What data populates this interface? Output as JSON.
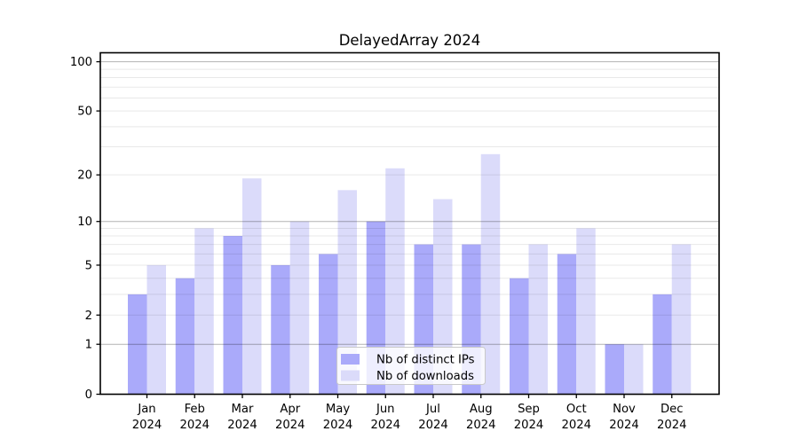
{
  "chart_data": {
    "type": "bar",
    "title": "DelayedArray 2024",
    "categories": [
      "Jan",
      "Feb",
      "Mar",
      "Apr",
      "May",
      "Jun",
      "Jul",
      "Aug",
      "Sep",
      "Oct",
      "Nov",
      "Dec"
    ],
    "year_label": "2024",
    "series": [
      {
        "name": "Nb of distinct IPs",
        "color": "#aaaafa",
        "values": [
          3,
          4,
          8,
          5,
          6,
          10,
          7,
          7,
          4,
          6,
          1,
          3
        ]
      },
      {
        "name": "Nb of downloads",
        "color": "#dbdbfa",
        "values": [
          5,
          9,
          19,
          10,
          16,
          22,
          14,
          27,
          7,
          9,
          1,
          7
        ]
      }
    ],
    "yscale": "log10(1+x)",
    "ylim": [
      0,
      100
    ],
    "ytick_labels": [
      "0",
      "1",
      "2",
      "5",
      "10",
      "20",
      "50",
      "100"
    ],
    "yticks": [
      0,
      1,
      2,
      5,
      10,
      20,
      50,
      100
    ],
    "grid_major": [
      1,
      10,
      100
    ],
    "grid_minor": [
      2,
      3,
      4,
      5,
      6,
      7,
      8,
      9,
      20,
      30,
      40,
      50,
      60,
      70,
      80,
      90
    ],
    "grid": "on",
    "legend_position": "lower-center",
    "colors": {
      "spine": "#000000",
      "grid_major": "rgba(0,0,0,0.30)",
      "grid_minor": "rgba(0,0,0,0.09)",
      "legend_border": "#c9c9c9",
      "legend_bg": "#ffffff"
    }
  }
}
